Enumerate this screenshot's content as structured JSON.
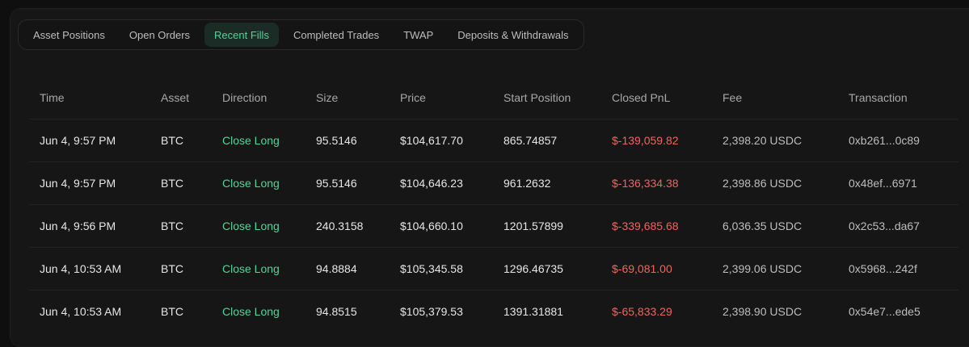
{
  "tabs": [
    {
      "label": "Asset Positions",
      "active": false
    },
    {
      "label": "Open Orders",
      "active": false
    },
    {
      "label": "Recent Fills",
      "active": true
    },
    {
      "label": "Completed Trades",
      "active": false
    },
    {
      "label": "TWAP",
      "active": false
    },
    {
      "label": "Deposits & Withdrawals",
      "active": false
    }
  ],
  "columns": [
    "Time",
    "Asset",
    "Direction",
    "Size",
    "Price",
    "Start Position",
    "Closed PnL",
    "Fee",
    "Transaction"
  ],
  "rows": [
    {
      "time": "Jun 4, 9:57 PM",
      "asset": "BTC",
      "direction": "Close Long",
      "size": "95.5146",
      "price": "$104,617.70",
      "start_position": "865.74857",
      "closed_pnl": "$-139,059.82",
      "fee": "2,398.20 USDC",
      "transaction": "0xb261...0c89"
    },
    {
      "time": "Jun 4, 9:57 PM",
      "asset": "BTC",
      "direction": "Close Long",
      "size": "95.5146",
      "price": "$104,646.23",
      "start_position": "961.2632",
      "closed_pnl": "$-136,334.38",
      "fee": "2,398.86 USDC",
      "transaction": "0x48ef...6971"
    },
    {
      "time": "Jun 4, 9:56 PM",
      "asset": "BTC",
      "direction": "Close Long",
      "size": "240.3158",
      "price": "$104,660.10",
      "start_position": "1201.57899",
      "closed_pnl": "$-339,685.68",
      "fee": "6,036.35 USDC",
      "transaction": "0x2c53...da67"
    },
    {
      "time": "Jun 4, 10:53 AM",
      "asset": "BTC",
      "direction": "Close Long",
      "size": "94.8884",
      "price": "$105,345.58",
      "start_position": "1296.46735",
      "closed_pnl": "$-69,081.00",
      "fee": "2,399.06 USDC",
      "transaction": "0x5968...242f"
    },
    {
      "time": "Jun 4, 10:53 AM",
      "asset": "BTC",
      "direction": "Close Long",
      "size": "94.8515",
      "price": "$105,379.53",
      "start_position": "1391.31881",
      "closed_pnl": "$-65,833.29",
      "fee": "2,398.90 USDC",
      "transaction": "0x54e7...ede5"
    }
  ],
  "colors": {
    "accent_green": "#54d39a",
    "loss_red": "#f0645f",
    "active_tab_bg": "#1b2b25"
  }
}
